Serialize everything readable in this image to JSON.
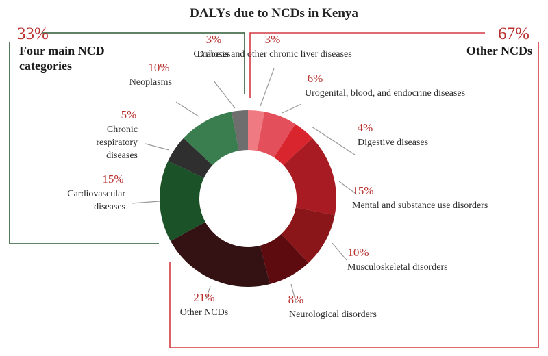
{
  "chart_data": {
    "type": "pie",
    "donut": true,
    "title": "DALYs due to NCDs in Kenya",
    "groups": [
      {
        "pct": "33%",
        "name_lines": [
          "Four main NCD",
          "categories"
        ],
        "color": "#2d5a32"
      },
      {
        "pct": "67%",
        "name_lines": [
          "Other NCDs"
        ],
        "color": "#d33a44"
      }
    ],
    "slices": [
      {
        "value": 3,
        "pct": "3%",
        "label_lines": [
          "Cirrhosis and other chronic liver diseases"
        ],
        "color": "#f07a82"
      },
      {
        "value": 6,
        "pct": "6%",
        "label_lines": [
          "Urogenital, blood, and endocrine diseases"
        ],
        "color": "#e3505c"
      },
      {
        "value": 4,
        "pct": "4%",
        "label_lines": [
          "Digestive diseases"
        ],
        "color": "#d8252e"
      },
      {
        "value": 15,
        "pct": "15%",
        "label_lines": [
          "Mental and substance use disorders"
        ],
        "color": "#a81b22"
      },
      {
        "value": 10,
        "pct": "10%",
        "label_lines": [
          "Musculoskeletal disorders"
        ],
        "color": "#8a1619"
      },
      {
        "value": 8,
        "pct": "8%",
        "label_lines": [
          "Neurological disorders"
        ],
        "color": "#5e0b0f"
      },
      {
        "value": 21,
        "pct": "21%",
        "label_lines": [
          "Other NCDs"
        ],
        "color": "#341213"
      },
      {
        "value": 15,
        "pct": "15%",
        "label_lines": [
          "Cardiovascular",
          "diseases"
        ],
        "color": "#1c5227"
      },
      {
        "value": 5,
        "pct": "5%",
        "label_lines": [
          "Chronic",
          "respiratory",
          "diseases"
        ],
        "color": "#2f2f2f"
      },
      {
        "value": 10,
        "pct": "10%",
        "label_lines": [
          "Neoplasms"
        ],
        "color": "#3a7e4f"
      },
      {
        "value": 3,
        "pct": "3%",
        "label_lines": [
          "Diabetes"
        ],
        "color": "#6e6e6e"
      }
    ],
    "colors": {
      "pct_text": "#b8312f",
      "leader": "#9a9a9a"
    }
  }
}
